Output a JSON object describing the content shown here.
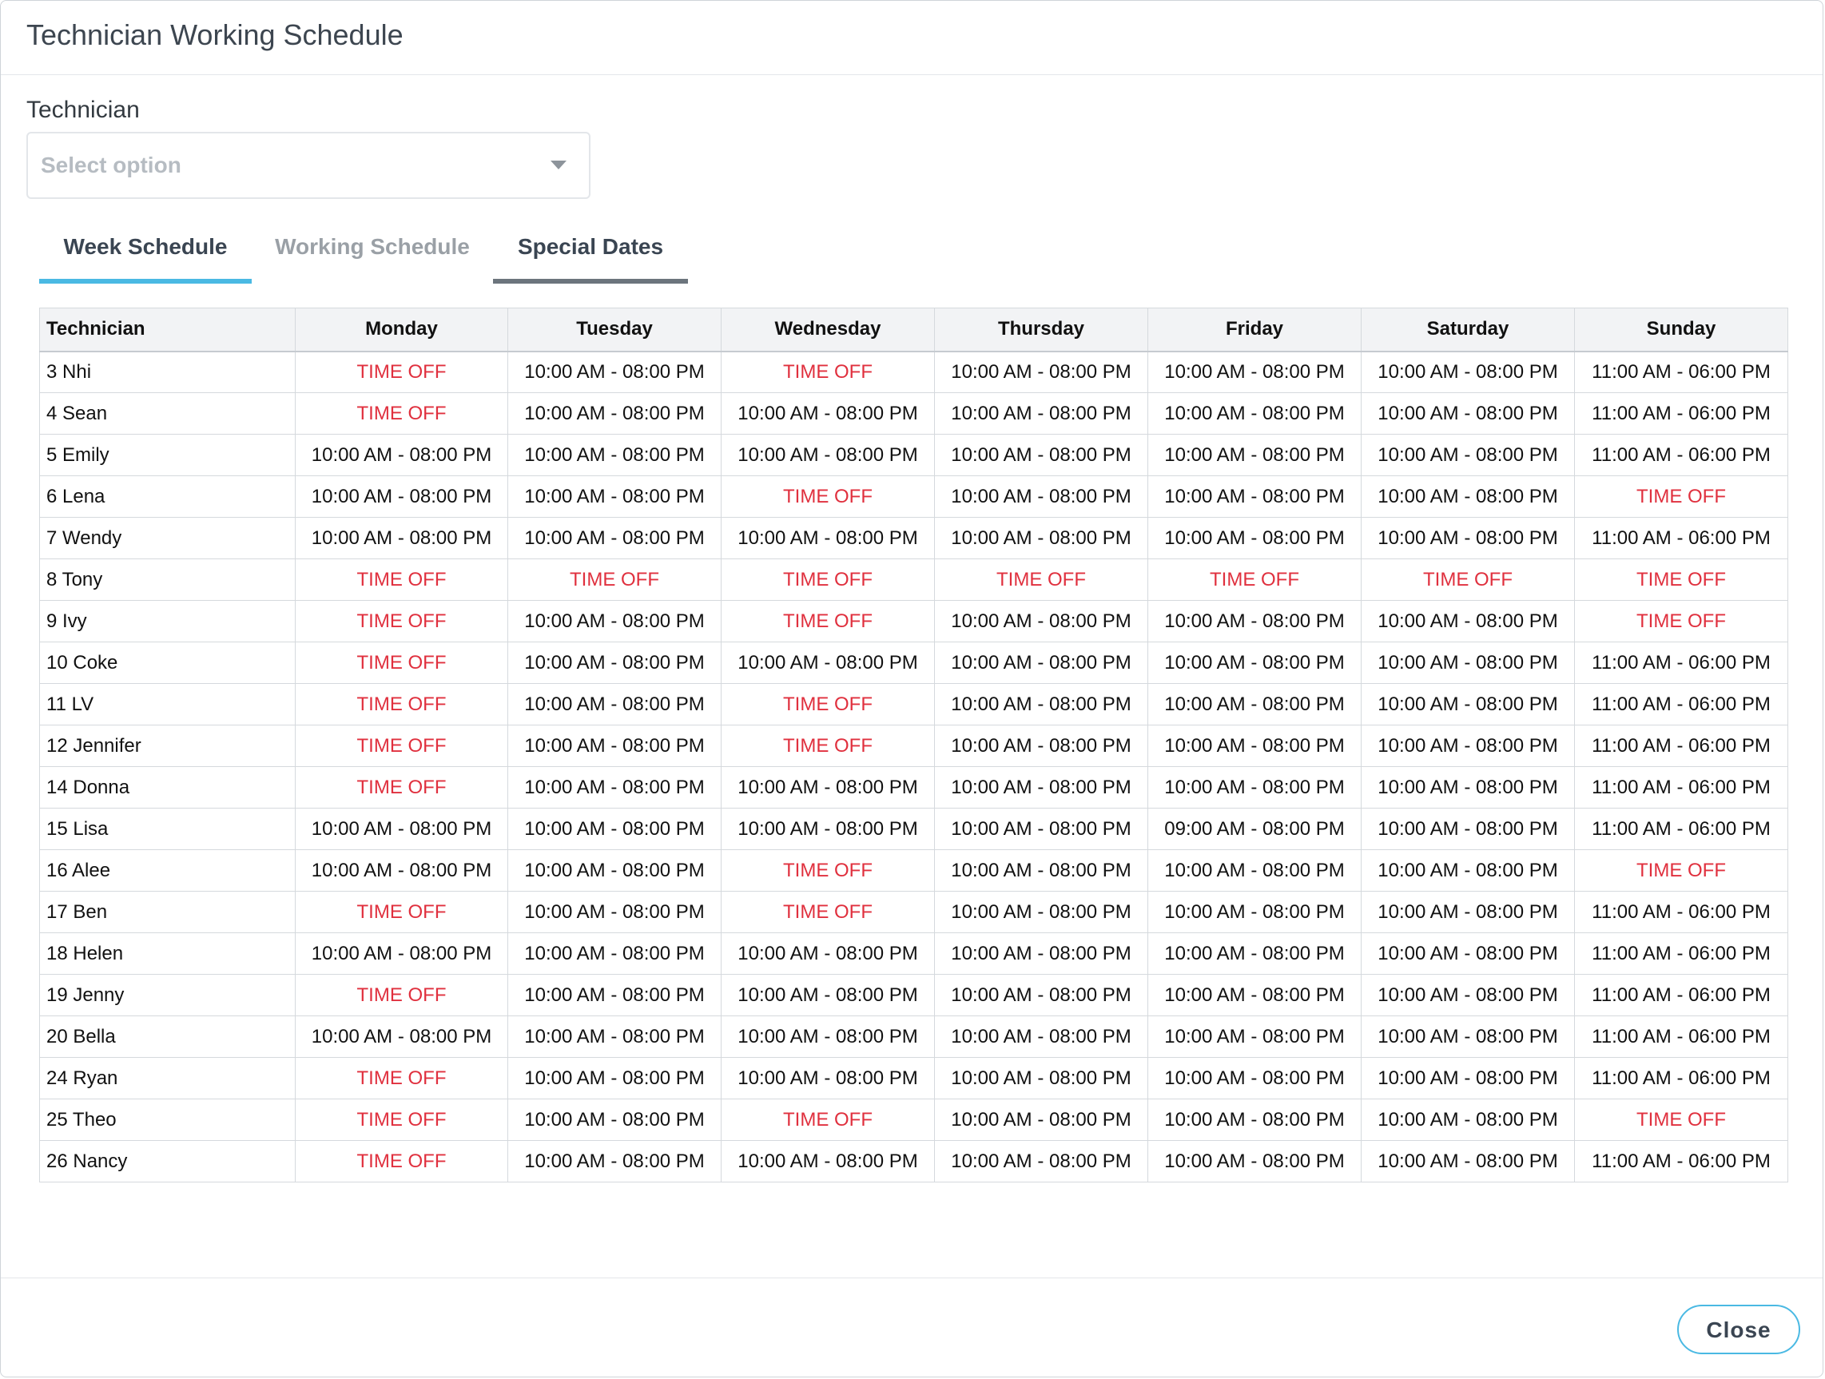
{
  "modal": {
    "title": "Technician Working Schedule",
    "close_label": "Close"
  },
  "filter": {
    "label": "Technician",
    "placeholder": "Select option"
  },
  "tabs": [
    {
      "label": "Week Schedule",
      "active": true
    },
    {
      "label": "Working Schedule",
      "active": false
    },
    {
      "label": "Special Dates",
      "active": false
    }
  ],
  "table": {
    "headers": [
      "Technician",
      "Monday",
      "Tuesday",
      "Wednesday",
      "Thursday",
      "Friday",
      "Saturday",
      "Sunday"
    ],
    "rows": [
      [
        "3 Nhi",
        "TIME OFF",
        "10:00 AM - 08:00 PM",
        "TIME OFF",
        "10:00 AM - 08:00 PM",
        "10:00 AM - 08:00 PM",
        "10:00 AM - 08:00 PM",
        "11:00 AM - 06:00 PM"
      ],
      [
        "4 Sean",
        "TIME OFF",
        "10:00 AM - 08:00 PM",
        "10:00 AM - 08:00 PM",
        "10:00 AM - 08:00 PM",
        "10:00 AM - 08:00 PM",
        "10:00 AM - 08:00 PM",
        "11:00 AM - 06:00 PM"
      ],
      [
        "5 Emily",
        "10:00 AM - 08:00 PM",
        "10:00 AM - 08:00 PM",
        "10:00 AM - 08:00 PM",
        "10:00 AM - 08:00 PM",
        "10:00 AM - 08:00 PM",
        "10:00 AM - 08:00 PM",
        "11:00 AM - 06:00 PM"
      ],
      [
        "6 Lena",
        "10:00 AM - 08:00 PM",
        "10:00 AM - 08:00 PM",
        "TIME OFF",
        "10:00 AM - 08:00 PM",
        "10:00 AM - 08:00 PM",
        "10:00 AM - 08:00 PM",
        "TIME OFF"
      ],
      [
        "7 Wendy",
        "10:00 AM - 08:00 PM",
        "10:00 AM - 08:00 PM",
        "10:00 AM - 08:00 PM",
        "10:00 AM - 08:00 PM",
        "10:00 AM - 08:00 PM",
        "10:00 AM - 08:00 PM",
        "11:00 AM - 06:00 PM"
      ],
      [
        "8 Tony",
        "TIME OFF",
        "TIME OFF",
        "TIME OFF",
        "TIME OFF",
        "TIME OFF",
        "TIME OFF",
        "TIME OFF"
      ],
      [
        "9 Ivy",
        "TIME OFF",
        "10:00 AM - 08:00 PM",
        "TIME OFF",
        "10:00 AM - 08:00 PM",
        "10:00 AM - 08:00 PM",
        "10:00 AM - 08:00 PM",
        "TIME OFF"
      ],
      [
        "10 Coke",
        "TIME OFF",
        "10:00 AM - 08:00 PM",
        "10:00 AM - 08:00 PM",
        "10:00 AM - 08:00 PM",
        "10:00 AM - 08:00 PM",
        "10:00 AM - 08:00 PM",
        "11:00 AM - 06:00 PM"
      ],
      [
        "11 LV",
        "TIME OFF",
        "10:00 AM - 08:00 PM",
        "TIME OFF",
        "10:00 AM - 08:00 PM",
        "10:00 AM - 08:00 PM",
        "10:00 AM - 08:00 PM",
        "11:00 AM - 06:00 PM"
      ],
      [
        "12 Jennifer",
        "TIME OFF",
        "10:00 AM - 08:00 PM",
        "TIME OFF",
        "10:00 AM - 08:00 PM",
        "10:00 AM - 08:00 PM",
        "10:00 AM - 08:00 PM",
        "11:00 AM - 06:00 PM"
      ],
      [
        "14 Donna",
        "TIME OFF",
        "10:00 AM - 08:00 PM",
        "10:00 AM - 08:00 PM",
        "10:00 AM - 08:00 PM",
        "10:00 AM - 08:00 PM",
        "10:00 AM - 08:00 PM",
        "11:00 AM - 06:00 PM"
      ],
      [
        "15 Lisa",
        "10:00 AM - 08:00 PM",
        "10:00 AM - 08:00 PM",
        "10:00 AM - 08:00 PM",
        "10:00 AM - 08:00 PM",
        "09:00 AM - 08:00 PM",
        "10:00 AM - 08:00 PM",
        "11:00 AM - 06:00 PM"
      ],
      [
        "16 Alee",
        "10:00 AM - 08:00 PM",
        "10:00 AM - 08:00 PM",
        "TIME OFF",
        "10:00 AM - 08:00 PM",
        "10:00 AM - 08:00 PM",
        "10:00 AM - 08:00 PM",
        "TIME OFF"
      ],
      [
        "17 Ben",
        "TIME OFF",
        "10:00 AM - 08:00 PM",
        "TIME OFF",
        "10:00 AM - 08:00 PM",
        "10:00 AM - 08:00 PM",
        "10:00 AM - 08:00 PM",
        "11:00 AM - 06:00 PM"
      ],
      [
        "18 Helen",
        "10:00 AM - 08:00 PM",
        "10:00 AM - 08:00 PM",
        "10:00 AM - 08:00 PM",
        "10:00 AM - 08:00 PM",
        "10:00 AM - 08:00 PM",
        "10:00 AM - 08:00 PM",
        "11:00 AM - 06:00 PM"
      ],
      [
        "19 Jenny",
        "TIME OFF",
        "10:00 AM - 08:00 PM",
        "10:00 AM - 08:00 PM",
        "10:00 AM - 08:00 PM",
        "10:00 AM - 08:00 PM",
        "10:00 AM - 08:00 PM",
        "11:00 AM - 06:00 PM"
      ],
      [
        "20 Bella",
        "10:00 AM - 08:00 PM",
        "10:00 AM - 08:00 PM",
        "10:00 AM - 08:00 PM",
        "10:00 AM - 08:00 PM",
        "10:00 AM - 08:00 PM",
        "10:00 AM - 08:00 PM",
        "11:00 AM - 06:00 PM"
      ],
      [
        "24 Ryan",
        "TIME OFF",
        "10:00 AM - 08:00 PM",
        "10:00 AM - 08:00 PM",
        "10:00 AM - 08:00 PM",
        "10:00 AM - 08:00 PM",
        "10:00 AM - 08:00 PM",
        "11:00 AM - 06:00 PM"
      ],
      [
        "25 Theo",
        "TIME OFF",
        "10:00 AM - 08:00 PM",
        "TIME OFF",
        "10:00 AM - 08:00 PM",
        "10:00 AM - 08:00 PM",
        "10:00 AM - 08:00 PM",
        "TIME OFF"
      ],
      [
        "26 Nancy",
        "TIME OFF",
        "10:00 AM - 08:00 PM",
        "10:00 AM - 08:00 PM",
        "10:00 AM - 08:00 PM",
        "10:00 AM - 08:00 PM",
        "10:00 AM - 08:00 PM",
        "11:00 AM - 06:00 PM"
      ]
    ]
  },
  "colors": {
    "accent": "#4ab9e3",
    "time_off": "#e0303e",
    "header_bg": "#f2f3f5"
  },
  "icons": {
    "select_caret": "caret-down-icon"
  }
}
